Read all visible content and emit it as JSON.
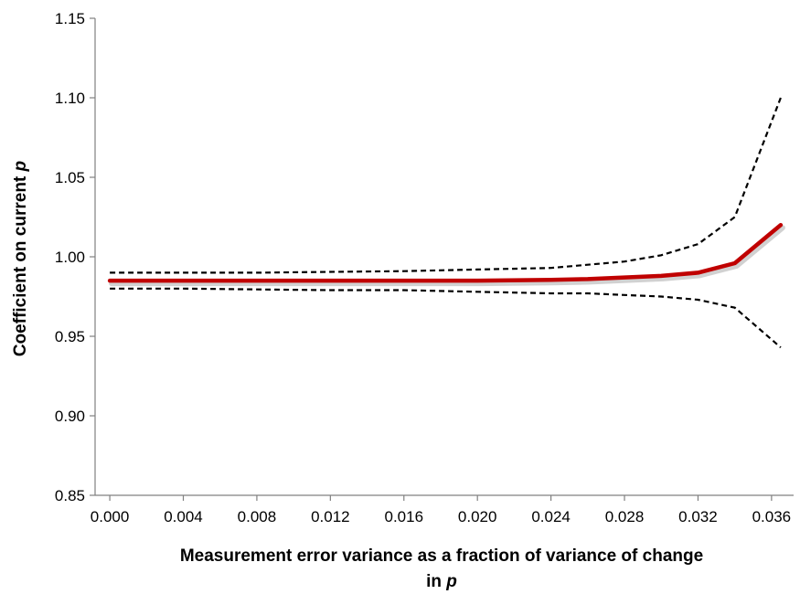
{
  "chart_data": {
    "type": "line",
    "xlabel": {
      "line1": "Measurement error variance as a fraction of variance of change",
      "line2_prefix": "in ",
      "line2_var": "p"
    },
    "ylabel": {
      "prefix": "Coefficient on current ",
      "var": "p"
    },
    "xlim": [
      -0.0008,
      0.0372
    ],
    "ylim": [
      0.85,
      1.15
    ],
    "x_ticks": [
      0.0,
      0.004,
      0.008,
      0.012,
      0.016,
      0.02,
      0.024,
      0.028,
      0.032,
      0.036
    ],
    "x_tick_labels": [
      "0.000",
      "0.004",
      "0.008",
      "0.012",
      "0.016",
      "0.020",
      "0.024",
      "0.028",
      "0.032",
      "0.036"
    ],
    "y_ticks": [
      0.85,
      0.9,
      0.95,
      1.0,
      1.05,
      1.1,
      1.15
    ],
    "y_tick_labels": [
      "0.85",
      "0.90",
      "0.95",
      "1.00",
      "1.05",
      "1.10",
      "1.15"
    ],
    "grid": false,
    "legend": "none",
    "series": [
      {
        "role": "estimate",
        "color": "#c00000",
        "style": "solid",
        "points": [
          [
            0.0,
            0.985
          ],
          [
            0.004,
            0.985
          ],
          [
            0.008,
            0.985
          ],
          [
            0.012,
            0.985
          ],
          [
            0.016,
            0.985
          ],
          [
            0.02,
            0.985
          ],
          [
            0.024,
            0.9855
          ],
          [
            0.026,
            0.986
          ],
          [
            0.028,
            0.987
          ],
          [
            0.03,
            0.988
          ],
          [
            0.032,
            0.99
          ],
          [
            0.034,
            0.996
          ],
          [
            0.0365,
            1.02
          ]
        ]
      },
      {
        "role": "upper-bound",
        "color": "#000000",
        "style": "dashed",
        "points": [
          [
            0.0,
            0.99
          ],
          [
            0.004,
            0.99
          ],
          [
            0.008,
            0.99
          ],
          [
            0.012,
            0.9905
          ],
          [
            0.016,
            0.991
          ],
          [
            0.02,
            0.992
          ],
          [
            0.024,
            0.993
          ],
          [
            0.026,
            0.995
          ],
          [
            0.028,
            0.997
          ],
          [
            0.03,
            1.001
          ],
          [
            0.032,
            1.008
          ],
          [
            0.034,
            1.025
          ],
          [
            0.0365,
            1.1
          ]
        ]
      },
      {
        "role": "lower-bound",
        "color": "#000000",
        "style": "dashed",
        "points": [
          [
            0.0,
            0.98
          ],
          [
            0.004,
            0.98
          ],
          [
            0.008,
            0.9795
          ],
          [
            0.012,
            0.979
          ],
          [
            0.016,
            0.979
          ],
          [
            0.02,
            0.978
          ],
          [
            0.024,
            0.977
          ],
          [
            0.026,
            0.977
          ],
          [
            0.028,
            0.976
          ],
          [
            0.03,
            0.975
          ],
          [
            0.032,
            0.973
          ],
          [
            0.034,
            0.968
          ],
          [
            0.0365,
            0.943
          ]
        ]
      }
    ]
  }
}
